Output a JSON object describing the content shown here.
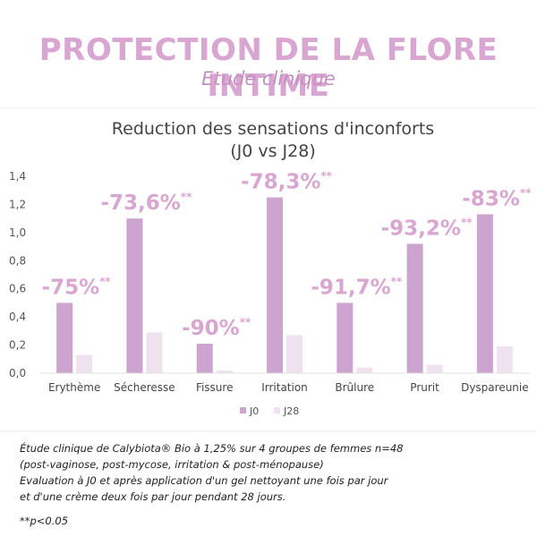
{
  "header": {
    "title": "PROTECTION DE LA FLORE INTIME",
    "subtitle": "Etude clinique"
  },
  "chart_data": {
    "type": "bar",
    "title": "Reduction des sensations d'inconforts",
    "subtitle": "(J0 vs J28)",
    "categories": [
      "Erythème",
      "Sécheresse",
      "Fissure",
      "Irritation",
      "Brûlure",
      "Prurit",
      "Dyspareunie"
    ],
    "series": [
      {
        "name": "J0",
        "values": [
          0.5,
          1.1,
          0.21,
          1.25,
          0.5,
          0.92,
          1.13
        ]
      },
      {
        "name": "J28",
        "values": [
          0.13,
          0.29,
          0.02,
          0.27,
          0.04,
          0.06,
          0.19
        ]
      }
    ],
    "annotations": [
      {
        "text": "-75%",
        "suffix": "**"
      },
      {
        "text": "-73,6%",
        "suffix": "**"
      },
      {
        "text": "-90%",
        "suffix": "**"
      },
      {
        "text": "-78,3%",
        "suffix": "**"
      },
      {
        "text": "-91,7%",
        "suffix": "**"
      },
      {
        "text": "-93,2%",
        "suffix": "**"
      },
      {
        "text": "-83%",
        "suffix": "**"
      }
    ],
    "yticks": [
      "0,0",
      "0,2",
      "0,4",
      "0,6",
      "0,8",
      "1,0",
      "1,2",
      "1,4"
    ],
    "ylim": [
      0,
      1.4
    ],
    "grid": false,
    "legend_position": "bottom-center",
    "colors": {
      "J0": "#cda3cf",
      "J28": "#f0e1ef",
      "annotation": "#d9a6d2"
    }
  },
  "footnote": {
    "lines": [
      "Étude clinique de Calybiota® Bio à 1,25% sur 4 groupes de femmes n=48",
      "(post-vaginose, post-mycose, irritation & post-ménopause)",
      "Evaluation à J0 et après application d'un gel nettoyant une fois par jour",
      "et d'une crème deux fois par jour pendant 28 jours."
    ],
    "significance": "**p<0.05"
  }
}
